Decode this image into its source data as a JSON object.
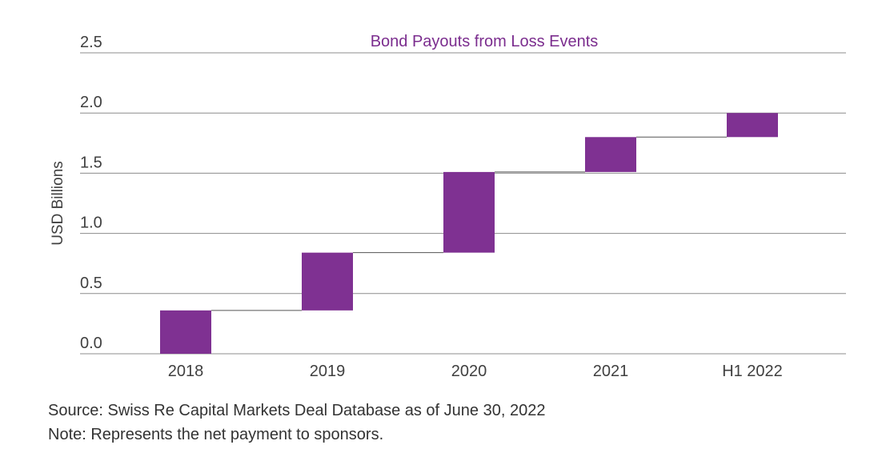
{
  "chart_data": {
    "type": "waterfall",
    "title": "Bond Payouts from Loss Events",
    "ylabel": "USD Billions",
    "xlabel": "",
    "categories": [
      "2018",
      "2019",
      "2020",
      "2021",
      "H1 2022"
    ],
    "values": [
      0.36,
      0.48,
      0.67,
      0.29,
      0.2
    ],
    "ylim": [
      0,
      2.5
    ],
    "yticks": [
      "0.0",
      "0.5",
      "1.0",
      "1.5",
      "2.0",
      "2.5"
    ],
    "grid": true,
    "legend": "none"
  },
  "colors": {
    "bar": "#7f3192",
    "title": "#7b2d8e",
    "grid": "#8c8c8c",
    "connector": "#555555"
  },
  "notes": {
    "source": "Source: Swiss Re Capital Markets Deal Database as of June 30, 2022",
    "note": "Note: Represents the net payment to sponsors."
  }
}
